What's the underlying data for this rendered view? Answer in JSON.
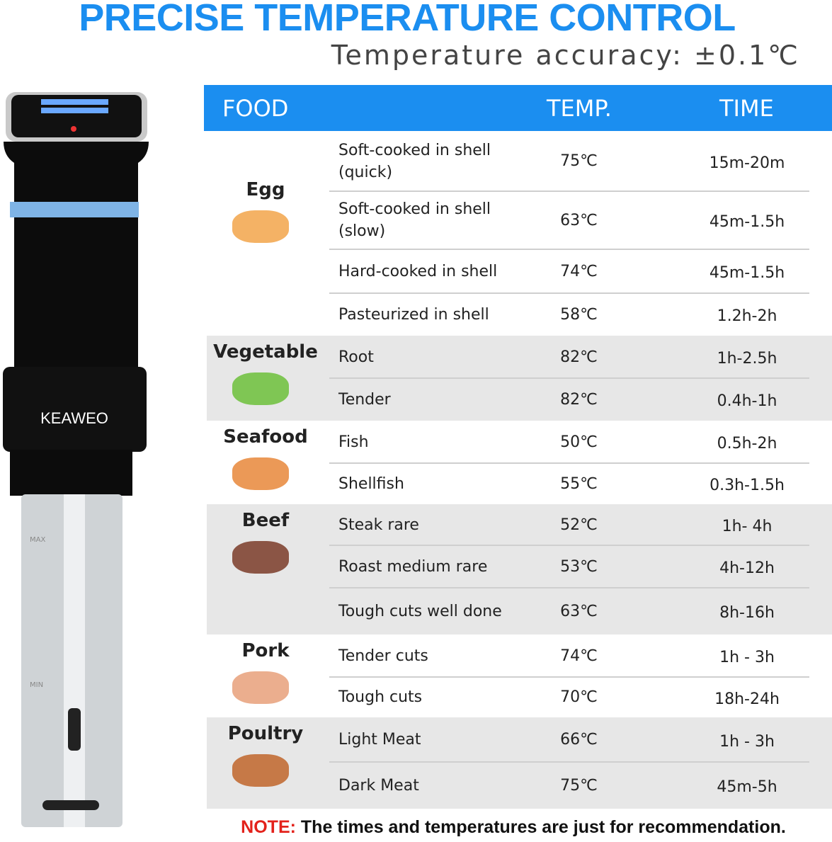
{
  "header": {
    "title": "PRECISE TEMPERATURE CONTROL",
    "subtitle": "Temperature accuracy: ±0.1℃"
  },
  "device": {
    "brand": "KEAWEO",
    "max_label": "MAX",
    "min_label": "MIN"
  },
  "table": {
    "columns": [
      "FOOD",
      "TEMP.",
      "TIME"
    ],
    "groups": [
      {
        "name": "Egg",
        "rows": [
          {
            "food": "Soft-cooked in shell (quick)",
            "temp": "75℃",
            "time": "15m-20m"
          },
          {
            "food": "Soft-cooked in shell (slow)",
            "temp": "63℃",
            "time": "45m-1.5h"
          },
          {
            "food": "Hard-cooked in shell",
            "temp": "74℃",
            "time": "45m-1.5h"
          },
          {
            "food": "Pasteurized in shell",
            "temp": "58℃",
            "time": "1.2h-2h"
          }
        ]
      },
      {
        "name": "Vegetable",
        "rows": [
          {
            "food": "Root",
            "temp": "82℃",
            "time": "1h-2.5h"
          },
          {
            "food": "Tender",
            "temp": "82℃",
            "time": "0.4h-1h"
          }
        ]
      },
      {
        "name": "Seafood",
        "rows": [
          {
            "food": "Fish",
            "temp": "50℃",
            "time": "0.5h-2h"
          },
          {
            "food": "Shellfish",
            "temp": "55℃",
            "time": "0.3h-1.5h"
          }
        ]
      },
      {
        "name": "Beef",
        "rows": [
          {
            "food": "Steak rare",
            "temp": "52℃",
            "time": "1h- 4h"
          },
          {
            "food": "Roast medium rare",
            "temp": "53℃",
            "time": "4h-12h"
          },
          {
            "food": "Tough cuts well done",
            "temp": "63℃",
            "time": "8h-16h"
          }
        ]
      },
      {
        "name": "Pork",
        "rows": [
          {
            "food": "Tender cuts",
            "temp": "74℃",
            "time": "1h - 3h"
          },
          {
            "food": "Tough cuts",
            "temp": "70℃",
            "time": "18h-24h"
          }
        ]
      },
      {
        "name": "Poultry",
        "rows": [
          {
            "food": "Light Meat",
            "temp": "66℃",
            "time": "1h - 3h"
          },
          {
            "food": "Dark Meat",
            "temp": "75℃",
            "time": "45m-5h"
          }
        ]
      }
    ]
  },
  "note": {
    "label": "NOTE:",
    "text": "The times and temperatures are just for recommendation."
  }
}
